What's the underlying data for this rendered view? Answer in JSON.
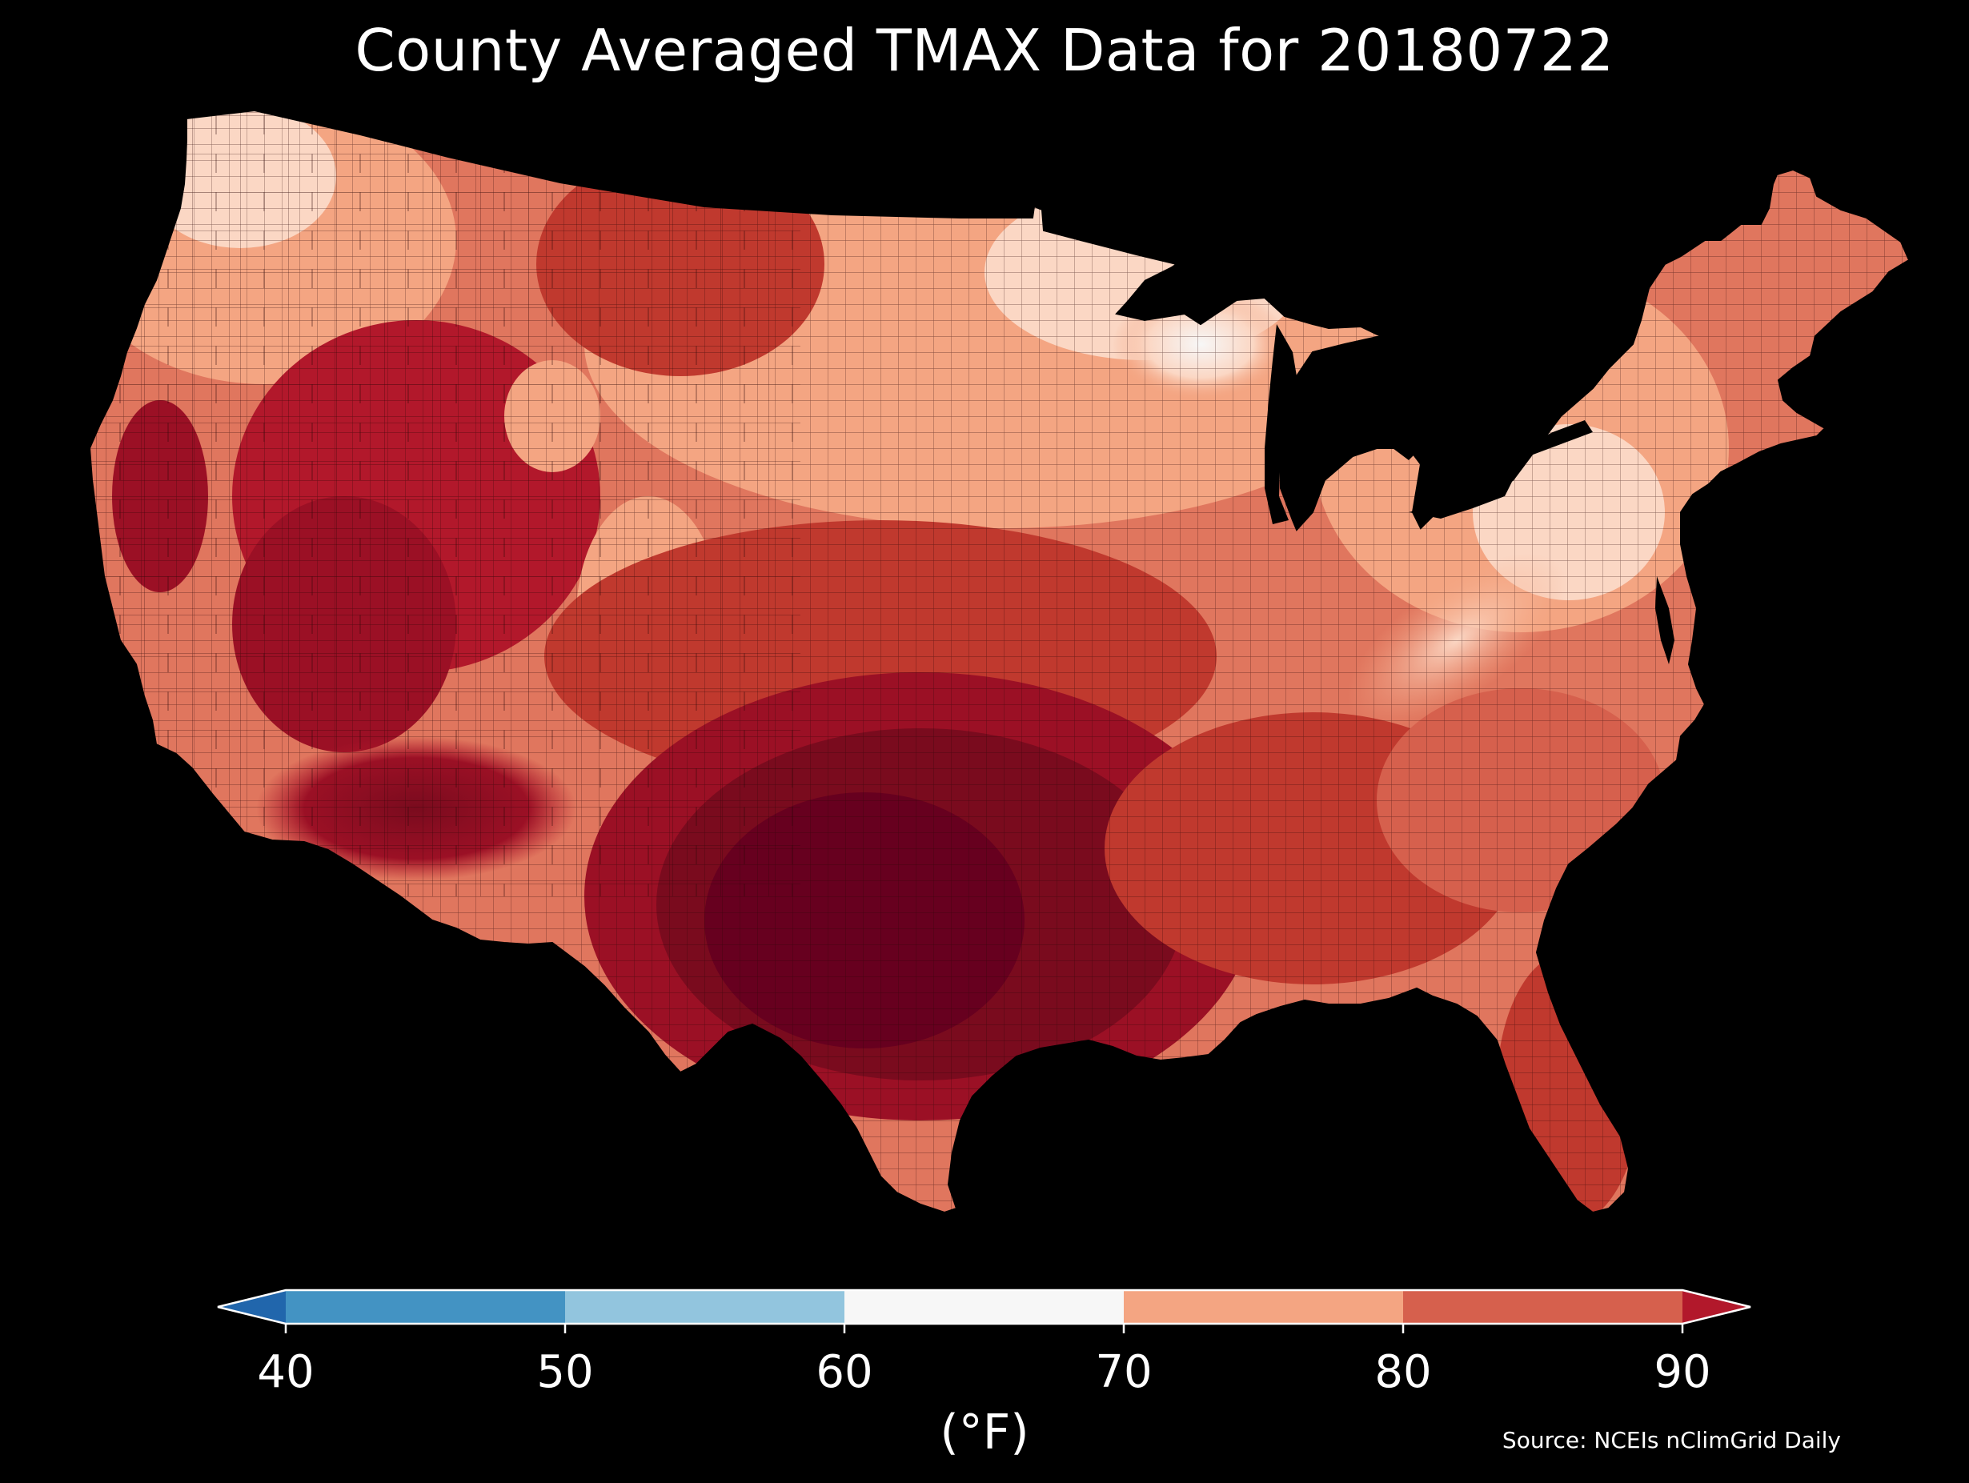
{
  "title": "County Averaged TMAX Data for 20180722",
  "map": {
    "region": "Contiguous United States",
    "unit_label": "(°F)",
    "source": "Source: NCEIs nClimGrid Daily",
    "colorbar": {
      "ticks": [
        "40",
        "50",
        "60",
        "70",
        "80",
        "90"
      ],
      "bins": [
        {
          "range": [
            null,
            40
          ],
          "color": "#2166ac",
          "extend": "min"
        },
        {
          "range": [
            40,
            50
          ],
          "color": "#4393c3"
        },
        {
          "range": [
            50,
            60
          ],
          "color": "#92c5de"
        },
        {
          "range": [
            60,
            70
          ],
          "color": "#f7f7f7"
        },
        {
          "range": [
            70,
            80
          ],
          "color": "#f4a582"
        },
        {
          "range": [
            80,
            90
          ],
          "color": "#d6604d"
        },
        {
          "range": [
            90,
            null
          ],
          "color": "#b2182b",
          "extend": "max"
        }
      ]
    },
    "background_color": "#000000",
    "land_palette": {
      "coolest": "#f7f7f7",
      "cool": "#fbd7c4",
      "mild": "#f4a582",
      "warm": "#e0765e",
      "hot": "#d6604d",
      "hotter": "#c0392e",
      "very_hot": "#b2182b",
      "extreme": "#7a0b1e",
      "extreme_max": "#67001f"
    }
  }
}
